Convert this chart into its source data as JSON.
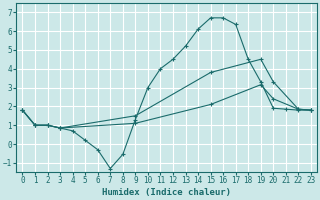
{
  "xlabel": "Humidex (Indice chaleur)",
  "background_color": "#cce8e8",
  "grid_color": "#ffffff",
  "line_color": "#1a6b6b",
  "xlim": [
    -0.5,
    23.5
  ],
  "ylim": [
    -1.5,
    7.5
  ],
  "xticks": [
    0,
    1,
    2,
    3,
    4,
    5,
    6,
    7,
    8,
    9,
    10,
    11,
    12,
    13,
    14,
    15,
    16,
    17,
    18,
    19,
    20,
    21,
    22,
    23
  ],
  "yticks": [
    -1,
    0,
    1,
    2,
    3,
    4,
    5,
    6,
    7
  ],
  "line1_x": [
    0,
    1,
    2,
    3,
    4,
    5,
    6,
    7,
    8,
    9,
    10,
    11,
    12,
    13,
    14,
    15,
    16,
    17,
    18,
    19,
    20,
    21,
    22,
    23
  ],
  "line1_y": [
    1.8,
    1.0,
    1.0,
    0.85,
    0.7,
    0.2,
    -0.3,
    -1.3,
    -0.55,
    1.3,
    3.0,
    4.0,
    4.5,
    5.2,
    6.1,
    6.7,
    6.7,
    6.35,
    4.5,
    3.3,
    1.9,
    1.85,
    1.8,
    1.8
  ],
  "line1_marker_idx": [
    0,
    1,
    2,
    3,
    4,
    5,
    6,
    7,
    8,
    9,
    10,
    11,
    12,
    13,
    14,
    15,
    16,
    17,
    18,
    19,
    20,
    21,
    22,
    23
  ],
  "line2_x": [
    0,
    1,
    2,
    3,
    9,
    15,
    19,
    20,
    22,
    23
  ],
  "line2_y": [
    1.8,
    1.0,
    1.0,
    0.85,
    1.5,
    3.8,
    4.5,
    3.3,
    1.85,
    1.8
  ],
  "line3_x": [
    0,
    1,
    2,
    3,
    9,
    15,
    19,
    20,
    22,
    23
  ],
  "line3_y": [
    1.8,
    1.0,
    1.0,
    0.85,
    1.1,
    2.1,
    3.15,
    2.4,
    1.85,
    1.8
  ]
}
